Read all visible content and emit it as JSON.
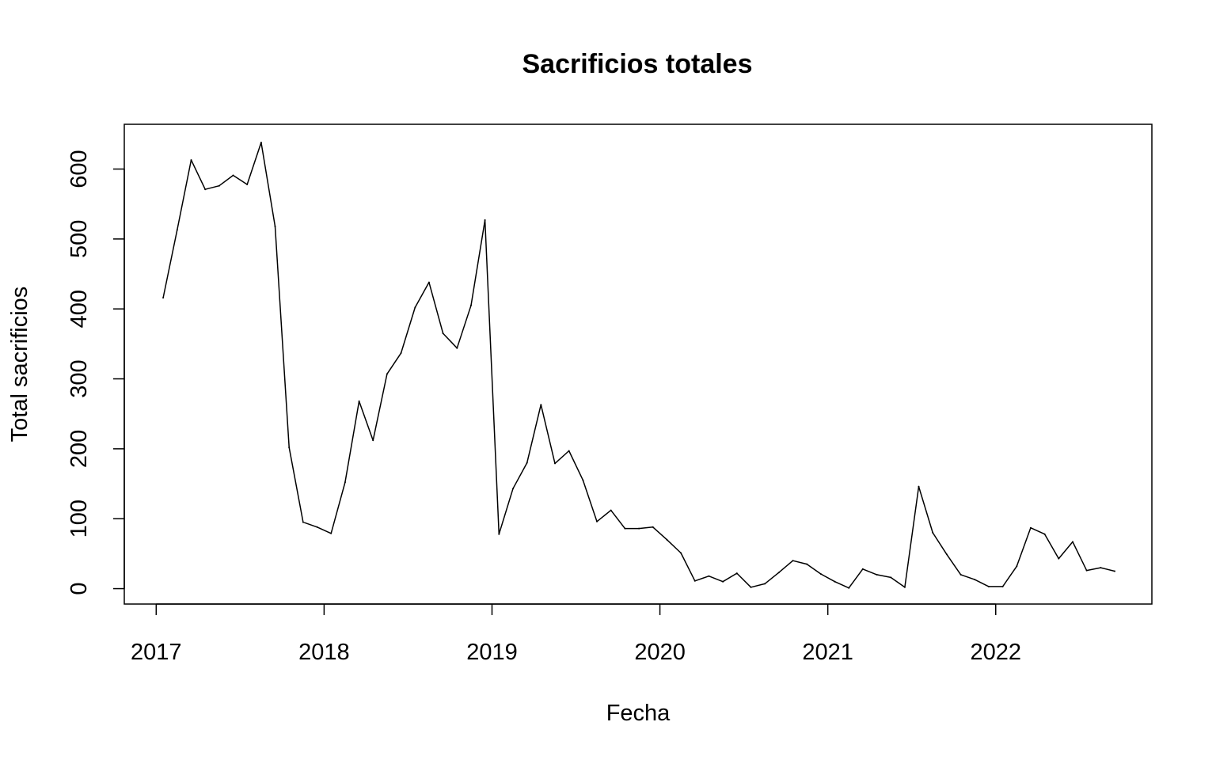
{
  "chart_data": {
    "type": "line",
    "title": "Sacrificios totales",
    "xlabel": "Fecha",
    "ylabel": "Total sacrificios",
    "x_ticks": [
      "2017",
      "2018",
      "2019",
      "2020",
      "2021",
      "2022"
    ],
    "x_tick_values": [
      2017,
      2018,
      2019,
      2020,
      2021,
      2022
    ],
    "y_ticks": [
      "0",
      "100",
      "200",
      "300",
      "400",
      "500",
      "600"
    ],
    "y_tick_values": [
      0,
      100,
      200,
      300,
      400,
      500,
      600
    ],
    "xlim": [
      2016.81,
      2022.93
    ],
    "ylim": [
      -22,
      664
    ],
    "grid": false,
    "line_color": "#000000",
    "series": [
      {
        "x": [
          "2017-01",
          "2017-02",
          "2017-03",
          "2017-04",
          "2017-05",
          "2017-06",
          "2017-07",
          "2017-08",
          "2017-09",
          "2017-10",
          "2017-11",
          "2017-12",
          "2018-01",
          "2018-02",
          "2018-03",
          "2018-04",
          "2018-05",
          "2018-06",
          "2018-07",
          "2018-08",
          "2018-09",
          "2018-10",
          "2018-11",
          "2018-12",
          "2019-01",
          "2019-02",
          "2019-03",
          "2019-04",
          "2019-05",
          "2019-06",
          "2019-07",
          "2019-08",
          "2019-09",
          "2019-10",
          "2019-11",
          "2019-12",
          "2020-01",
          "2020-02",
          "2020-03",
          "2020-04",
          "2020-05",
          "2020-06",
          "2020-07",
          "2020-08",
          "2020-09",
          "2020-10",
          "2020-11",
          "2020-12",
          "2021-01",
          "2021-02",
          "2021-03",
          "2021-04",
          "2021-05",
          "2021-06",
          "2021-07",
          "2021-08",
          "2021-09",
          "2021-10",
          "2021-11",
          "2021-12",
          "2022-01",
          "2022-02",
          "2022-03",
          "2022-04",
          "2022-05",
          "2022-06",
          "2022-07",
          "2022-08",
          "2022-09"
        ],
        "y": [
          416,
          513,
          613,
          571,
          576,
          591,
          578,
          638,
          518,
          202,
          95,
          88,
          79,
          152,
          268,
          212,
          307,
          337,
          402,
          438,
          365,
          344,
          405,
          527,
          78,
          143,
          180,
          263,
          179,
          197,
          155,
          96,
          112,
          86,
          86,
          88,
          70,
          51,
          11,
          18,
          10,
          22,
          2,
          7,
          23,
          40,
          35,
          21,
          10,
          1,
          28,
          20,
          16,
          2,
          146,
          80,
          49,
          20,
          13,
          3,
          3,
          32,
          87,
          78,
          43,
          67,
          26,
          30,
          25
        ]
      }
    ]
  }
}
